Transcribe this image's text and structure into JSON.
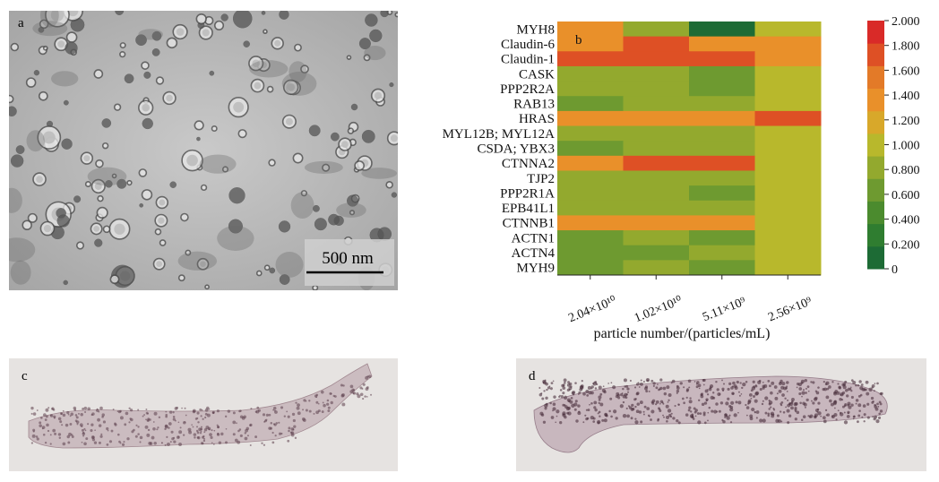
{
  "panels": {
    "a": {
      "letter": "a",
      "scale_bar_label": "500 nm"
    },
    "b": {
      "letter": "b"
    },
    "c": {
      "letter": "c"
    },
    "d": {
      "letter": "d"
    }
  },
  "chart_data": {
    "type": "heatmap",
    "title": "",
    "xlabel": "particle number/(particles/mL)",
    "ylabel": "",
    "x_categories": [
      "2.04×10¹⁰",
      "1.02×10¹⁰",
      "5.11×10⁹",
      "2.56×10⁹"
    ],
    "y_categories": [
      "MYH8",
      "Claudin-6",
      "Claudin-1",
      "CASK",
      "PPP2R2A",
      "RAB13",
      "HRAS",
      "MYL12B; MYL12A",
      "CSDA; YBX3",
      "CTNNA2",
      "TJP2",
      "PPP2R1A",
      "EPB41L1",
      "CTNNB1",
      "ACTN1",
      "ACTN4",
      "MYH9"
    ],
    "values": [
      [
        1.3,
        0.8,
        0.05,
        1.0
      ],
      [
        1.3,
        1.8,
        1.3,
        1.3
      ],
      [
        1.8,
        1.8,
        1.8,
        1.3
      ],
      [
        0.8,
        0.8,
        0.6,
        1.0
      ],
      [
        0.8,
        0.8,
        0.6,
        1.0
      ],
      [
        0.6,
        0.8,
        0.8,
        1.0
      ],
      [
        1.3,
        1.3,
        1.3,
        1.8
      ],
      [
        0.8,
        0.8,
        0.8,
        1.0
      ],
      [
        0.6,
        0.8,
        0.8,
        1.0
      ],
      [
        1.3,
        1.8,
        1.8,
        1.0
      ],
      [
        0.8,
        0.8,
        0.8,
        1.0
      ],
      [
        0.8,
        0.8,
        0.6,
        1.0
      ],
      [
        0.8,
        0.8,
        0.8,
        1.0
      ],
      [
        1.3,
        1.3,
        1.3,
        1.0
      ],
      [
        0.6,
        0.8,
        0.6,
        1.0
      ],
      [
        0.6,
        0.6,
        0.8,
        1.0
      ],
      [
        0.6,
        0.8,
        0.6,
        1.0
      ]
    ],
    "colorbar": {
      "min": 0,
      "max": 2.0,
      "ticks": [
        "0",
        "0.200",
        "0.400",
        "0.600",
        "0.800",
        "1.000",
        "1.200",
        "1.400",
        "1.600",
        "1.800",
        "2.000"
      ],
      "colors": [
        "#1d6b35",
        "#2f7d30",
        "#4b8b2e",
        "#6e9a30",
        "#93a92e",
        "#b8b82c",
        "#d8a82a",
        "#e9902a",
        "#e37a28",
        "#de5025",
        "#d92a28"
      ]
    }
  }
}
